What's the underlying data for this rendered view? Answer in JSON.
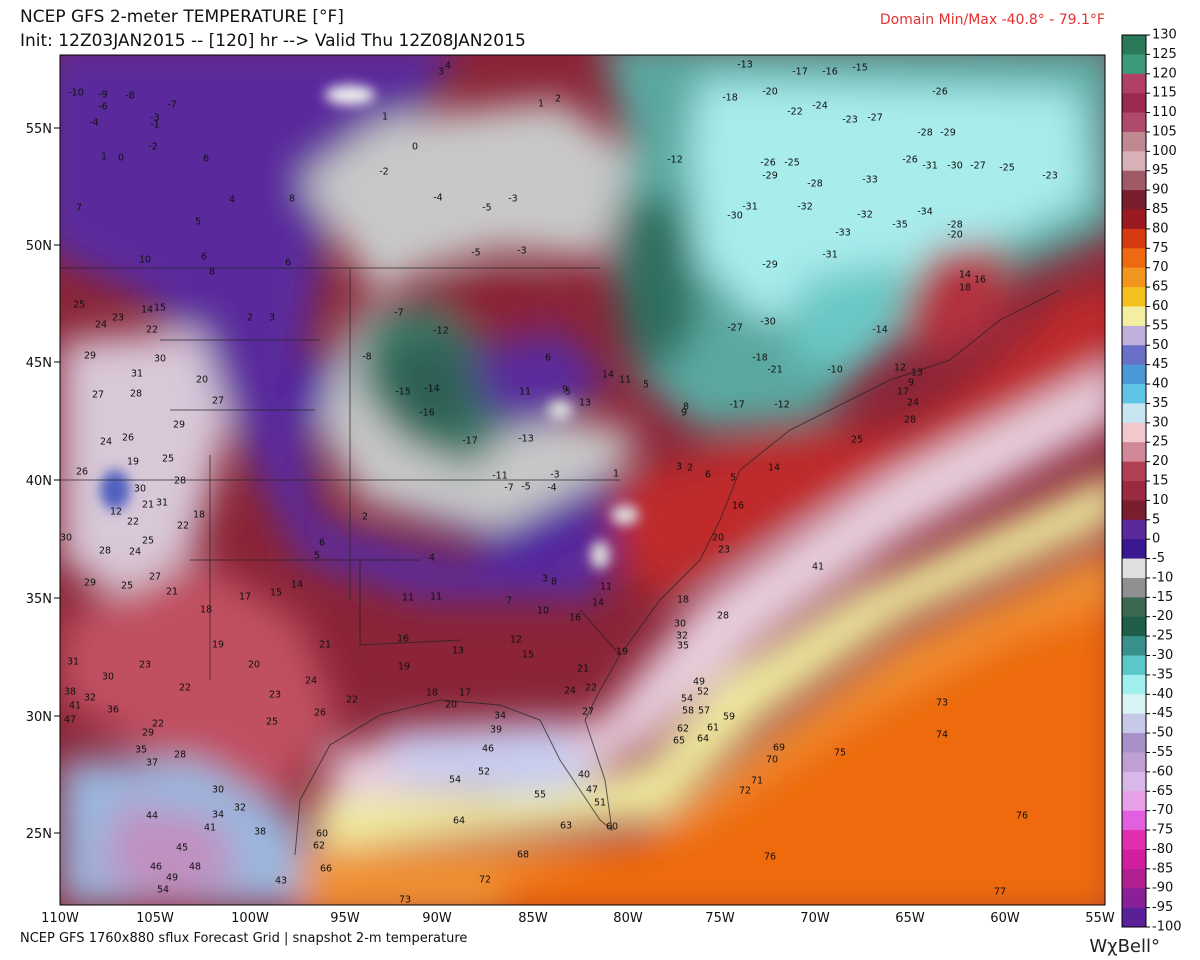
{
  "header": {
    "title": "NCEP GFS 2-meter TEMPERATURE [°F]",
    "init": "Init: 12Z03JAN2015 -- [120] hr --> Valid Thu 12Z08JAN2015",
    "domain": "Domain Min/Max -40.8° -  79.1°F"
  },
  "footer": {
    "source": "NCEP GFS 1760x880 sflux Forecast Grid | snapshot 2-m temperature",
    "brand": "WχBell°"
  },
  "map": {
    "lon_labels": [
      "110W",
      "105W",
      "100W",
      "95W",
      "90W",
      "85W",
      "80W",
      "75W",
      "70W",
      "65W",
      "60W",
      "55W"
    ],
    "lat_labels": [
      "55N",
      "50N",
      "45N",
      "40N",
      "35N",
      "30N",
      "25N"
    ],
    "temps": [
      -13,
      -17,
      -16,
      -15,
      -18,
      -20,
      -22,
      -24,
      -26,
      -23,
      -27,
      -28,
      -29,
      -26,
      -31,
      -30,
      -27,
      -25,
      -23,
      -12,
      -26,
      -25,
      -29,
      -28,
      -33,
      -31,
      -30,
      -32,
      -32,
      -35,
      -34,
      -33,
      -29,
      -31,
      -28,
      -20,
      -27,
      -30,
      -21,
      -18,
      -17,
      -12,
      -14,
      -10,
      25,
      28,
      24,
      16,
      14,
      18,
      41,
      23,
      73,
      74,
      75,
      76,
      77,
      76,
      72,
      73,
      66,
      60,
      63,
      64,
      68,
      55,
      54,
      52,
      46,
      39,
      34,
      20,
      17,
      18,
      22,
      26,
      25,
      23,
      24,
      20,
      19,
      21,
      13,
      15,
      12,
      16,
      14,
      11,
      10,
      11,
      16,
      19,
      17,
      15,
      14,
      18,
      21,
      25,
      27,
      29,
      22,
      29,
      35,
      28,
      37,
      30,
      32,
      34,
      41,
      38,
      44,
      45,
      48,
      46,
      49,
      54,
      43,
      62,
      36,
      32,
      41,
      47,
      38,
      31,
      23,
      30,
      22,
      1,
      3,
      2,
      6,
      5,
      14,
      16,
      20,
      28,
      32,
      35,
      30,
      18,
      19,
      21,
      22,
      24,
      27,
      40,
      47,
      51,
      60,
      49,
      52,
      54,
      58,
      57,
      59,
      62,
      65,
      61,
      64,
      69,
      70,
      71,
      72,
      -3,
      -4,
      -13,
      -17,
      -11,
      -7,
      -5,
      -15,
      -14,
      -16,
      -8,
      -12,
      -7,
      -5,
      -3,
      -4,
      -5,
      -3,
      -2,
      0,
      1,
      1,
      2,
      4,
      3,
      5,
      7,
      6,
      4,
      8,
      6,
      6,
      10,
      8,
      2,
      3,
      25,
      24,
      23,
      14,
      15,
      22,
      29,
      30,
      31,
      27,
      28,
      20,
      27,
      29,
      24,
      26,
      19,
      25,
      28,
      30,
      21,
      31,
      12,
      22,
      22,
      18,
      30,
      28,
      24,
      25,
      26,
      -10,
      -9,
      -8,
      -6,
      -7,
      -4,
      -3,
      -1,
      -2,
      0,
      1,
      5,
      6,
      2,
      4,
      11,
      8,
      3,
      7,
      11,
      6,
      9,
      5,
      13,
      14,
      11,
      5,
      8,
      9,
      13,
      9,
      12,
      17
    ]
  },
  "colorbar": {
    "ticks": [
      130,
      125,
      120,
      115,
      110,
      105,
      100,
      95,
      90,
      85,
      80,
      75,
      70,
      65,
      60,
      55,
      50,
      45,
      40,
      35,
      30,
      25,
      20,
      15,
      10,
      5,
      0,
      -5,
      -10,
      -15,
      -20,
      -25,
      -30,
      -35,
      -40,
      -45,
      -50,
      -55,
      -60,
      -65,
      -70,
      -75,
      -80,
      -85,
      -90,
      -95,
      -100
    ]
  }
}
